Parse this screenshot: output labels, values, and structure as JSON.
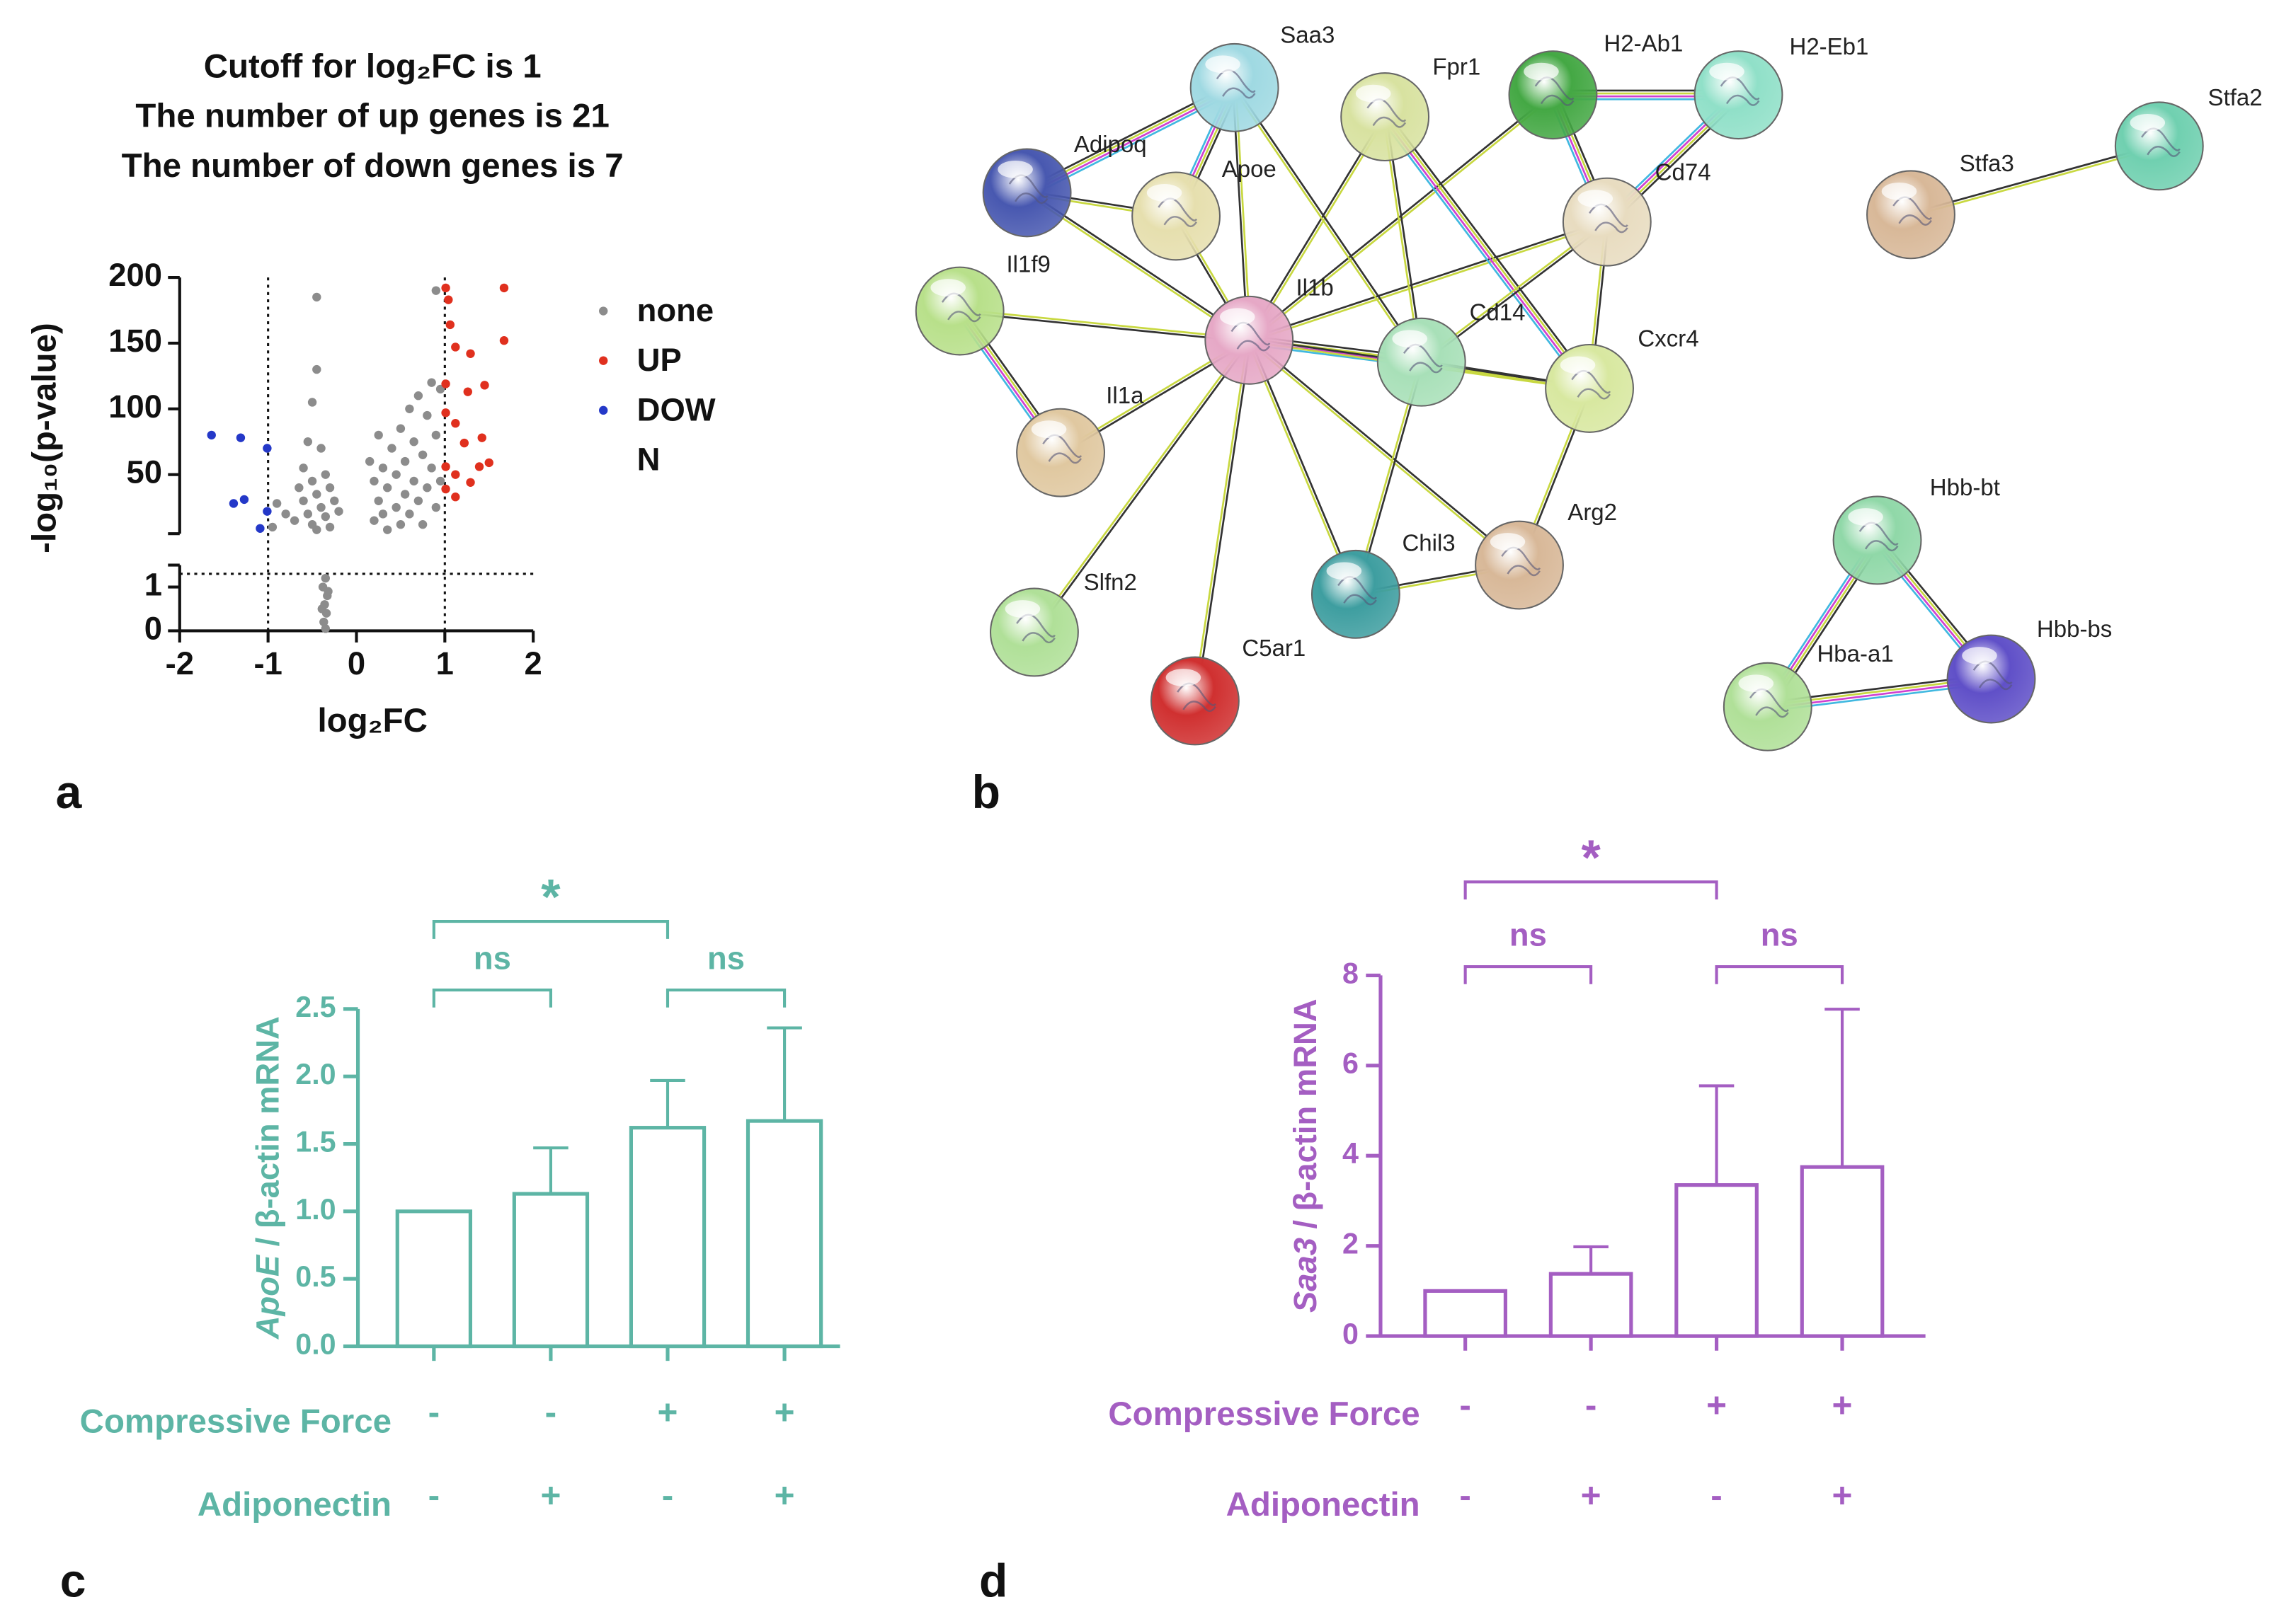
{
  "chart_data": [
    {
      "type": "scatter",
      "panel_label": "a",
      "title": [
        "Cutoff for log₂FC is 1",
        "The number of up genes is 21",
        "The number of down genes is 7"
      ],
      "xlabel": "log₂FC",
      "ylabel": "-log₁₀(p-value)",
      "xlim": [
        -2,
        2
      ],
      "xticks": [
        -2,
        -1,
        0,
        1,
        2
      ],
      "ylim": [
        0,
        200
      ],
      "ybreak": [
        1.5,
        5
      ],
      "yticks": [
        0,
        1,
        50,
        100,
        150,
        200
      ],
      "vlines": [
        -1,
        1
      ],
      "hlines": [
        1.3
      ],
      "legend": "right",
      "series": [
        {
          "name": "none",
          "color": "#8c8c8c",
          "x": [
            -0.45,
            -0.45,
            -0.5,
            -0.55,
            -0.4,
            -0.6,
            -0.35,
            -0.5,
            -0.3,
            -0.45,
            -0.6,
            -0.25,
            -0.4,
            -0.55,
            -0.35,
            -0.5,
            -0.3,
            -0.45,
            -0.2,
            -0.65,
            -0.9,
            -0.8,
            -0.7,
            -0.95,
            -0.35,
            -0.38,
            -0.33,
            -0.36,
            -0.34,
            -0.37,
            -0.35,
            -0.32,
            -0.39,
            0.9,
            0.95,
            0.85,
            0.7,
            0.6,
            0.8,
            0.5,
            0.9,
            0.65,
            0.4,
            0.75,
            0.55,
            0.3,
            0.85,
            0.45,
            0.65,
            0.2,
            0.35,
            0.8,
            0.55,
            0.25,
            0.7,
            0.45,
            0.9,
            0.3,
            0.6,
            0.2,
            0.5,
            0.75,
            0.35,
            0.95,
            0.15,
            0.25
          ],
          "values": [
            185,
            130,
            105,
            75,
            70,
            55,
            50,
            45,
            40,
            35,
            30,
            30,
            25,
            20,
            18,
            12,
            10,
            8,
            22,
            40,
            28,
            20,
            15,
            10,
            1.2,
            1.0,
            0.8,
            0.6,
            0.4,
            0.2,
            0.05,
            0.9,
            0.5,
            190,
            115,
            120,
            110,
            100,
            95,
            85,
            80,
            75,
            70,
            65,
            60,
            55,
            55,
            50,
            45,
            45,
            40,
            40,
            35,
            30,
            30,
            25,
            25,
            20,
            20,
            15,
            12,
            12,
            8,
            45,
            60,
            80
          ]
        },
        {
          "name": "UP",
          "color": "#e0301e",
          "x": [
            1.01,
            1.04,
            1.67,
            1.06,
            1.12,
            1.29,
            1.67,
            1.01,
            1.26,
            1.45,
            1.01,
            1.12,
            1.22,
            1.42,
            1.01,
            1.12,
            1.39,
            1.5,
            1.01,
            1.12,
            1.29
          ],
          "values": [
            192,
            183,
            192,
            164,
            147,
            142,
            152,
            119,
            113,
            118,
            97,
            89,
            74,
            78,
            56,
            50,
            56,
            59,
            39,
            33,
            44
          ]
        },
        {
          "name": "DOWN",
          "color": "#2438c8",
          "x": [
            -1.64,
            -1.31,
            -1.01,
            -1.39,
            -1.27,
            -1.01,
            -1.09
          ],
          "values": [
            80,
            78,
            70,
            28,
            31,
            22,
            9
          ]
        }
      ]
    },
    {
      "type": "bar",
      "panel_label": "c",
      "color": "#5db5a5",
      "ylabel_gene": "ApoE",
      "ylabel": "/ β-actin mRNA",
      "values": [
        1.0,
        1.13,
        1.62,
        1.67
      ],
      "errors": [
        0,
        0.34,
        0.35,
        0.69
      ],
      "ylim": [
        0,
        2.5
      ],
      "yticks": [
        {
          "value": 0,
          "label": "0.0"
        },
        0.5,
        {
          "value": 1,
          "label": "1.0"
        },
        1.5,
        {
          "value": 2,
          "label": "2.0"
        },
        2.5
      ],
      "conditions": [
        {
          "name": "Compressive Force",
          "levels": [
            "-",
            "-",
            "+",
            "+"
          ]
        },
        {
          "name": "Adiponectin",
          "levels": [
            "-",
            "+",
            "-",
            "+"
          ]
        }
      ],
      "significance": [
        "*",
        "ns",
        "ns"
      ]
    },
    {
      "type": "bar",
      "panel_label": "d",
      "color": "#a45ec2",
      "ylabel_gene": "Saa3",
      "ylabel": "/ β-actin mRNA",
      "values": [
        1.0,
        1.38,
        3.35,
        3.75
      ],
      "errors": [
        0,
        0.6,
        2.2,
        3.5
      ],
      "ylim": [
        0,
        8
      ],
      "yticks": [
        0,
        2,
        4,
        6,
        8
      ],
      "conditions": [
        {
          "name": "Compressive Force",
          "levels": [
            "-",
            "-",
            "+",
            "+"
          ]
        },
        {
          "name": "Adiponectin",
          "levels": [
            "-",
            "+",
            "-",
            "+"
          ]
        }
      ],
      "significance": [
        "*",
        "ns",
        "ns"
      ]
    }
  ],
  "network": {
    "panel_label": "b",
    "nodes": [
      {
        "label": "Saa3",
        "color": "#9fd9e2"
      },
      {
        "label": "Adipoq",
        "color": "#4858b0"
      },
      {
        "label": "Apoe",
        "color": "#e6dfae"
      },
      {
        "label": "Il1f9",
        "color": "#b8e08a"
      },
      {
        "label": "Il1b",
        "color": "#e6a8c6"
      },
      {
        "label": "Fpr1",
        "color": "#d8e2a0"
      },
      {
        "label": "H2-Ab1",
        "color": "#44a844"
      },
      {
        "label": "H2-Eb1",
        "color": "#90e0c8"
      },
      {
        "label": "Cd74",
        "color": "#e8dcc0"
      },
      {
        "label": "Cd14",
        "color": "#a8e0b8"
      },
      {
        "label": "Cxcr4",
        "color": "#d8e8a0"
      },
      {
        "label": "Il1a",
        "color": "#e0c8a0"
      },
      {
        "label": "Slfn2",
        "color": "#b0e098"
      },
      {
        "label": "Chil3",
        "color": "#3e9ea0"
      },
      {
        "label": "Arg2",
        "color": "#d8b898"
      },
      {
        "label": "C5ar1",
        "color": "#d03030"
      },
      {
        "label": "Stfa3",
        "color": "#d8b898"
      },
      {
        "label": "Stfa2",
        "color": "#70d0b0"
      },
      {
        "label": "Hbb-bt",
        "color": "#90d8a8"
      },
      {
        "label": "Hba-a1",
        "color": "#b0e098"
      },
      {
        "label": "Hbb-bs",
        "color": "#6050c8"
      }
    ]
  }
}
